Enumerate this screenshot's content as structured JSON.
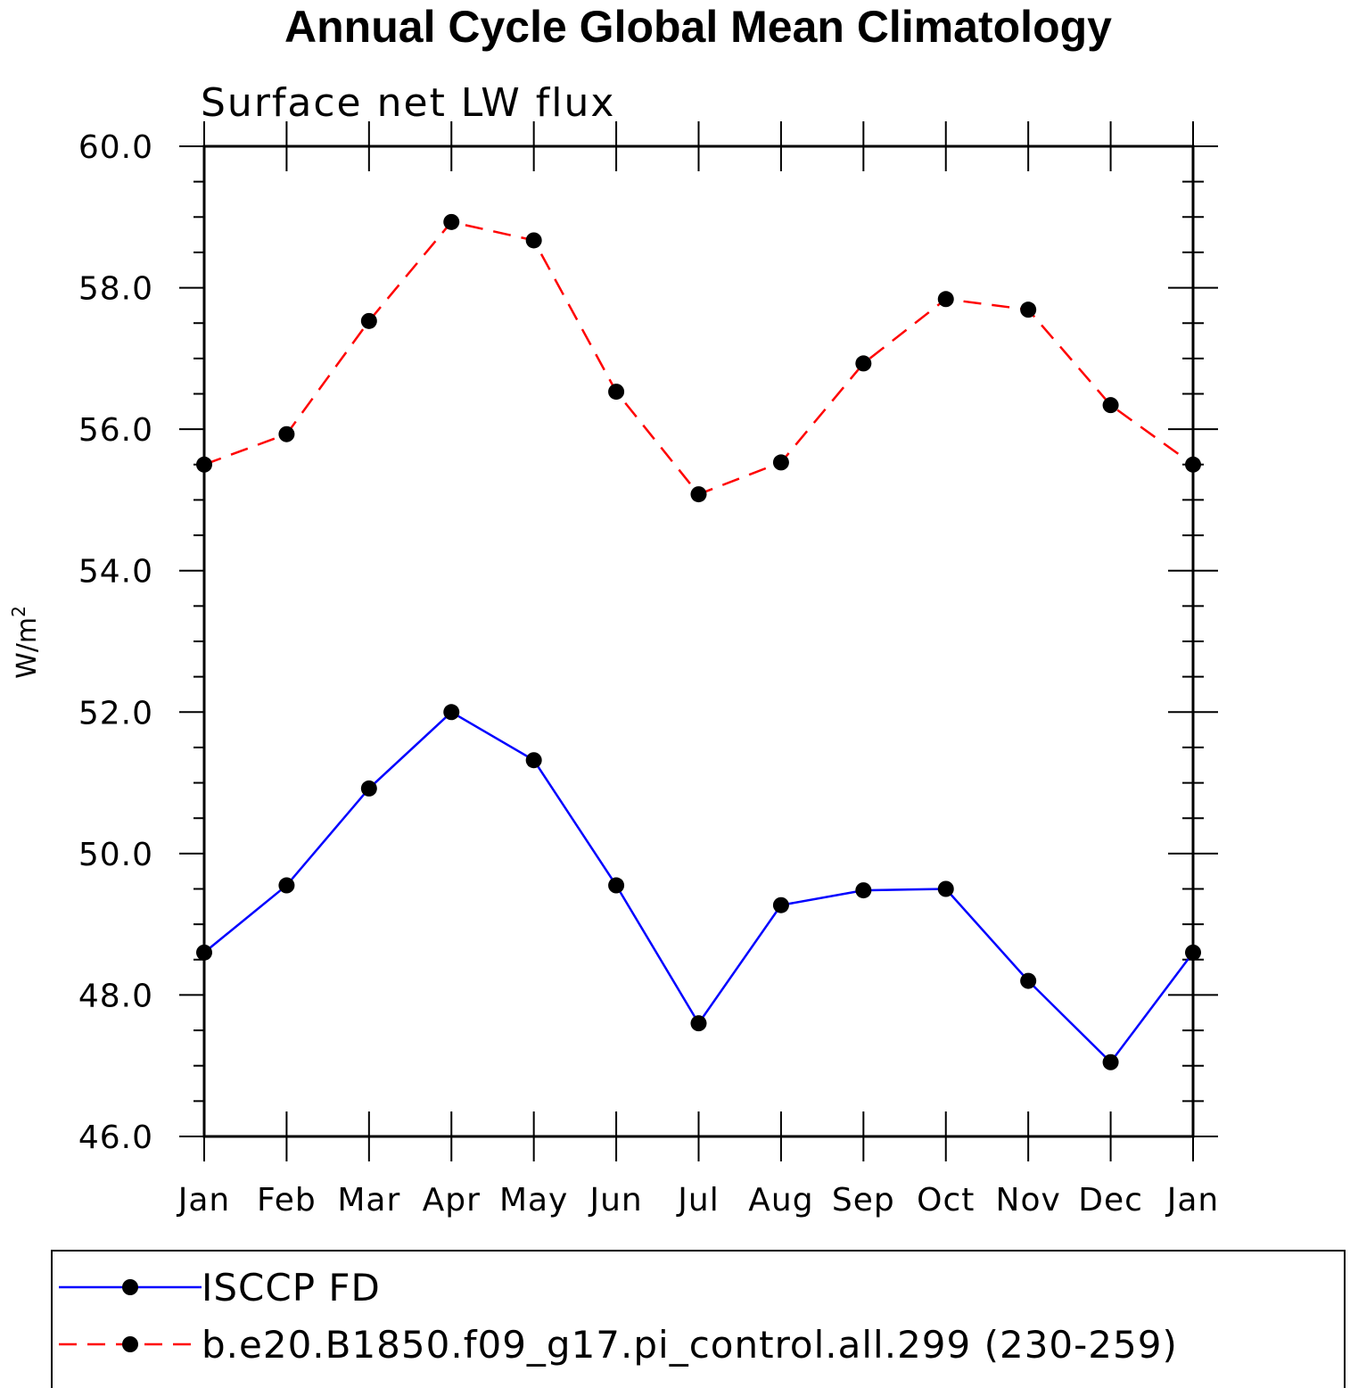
{
  "chart_data": {
    "type": "line",
    "title": "Annual Cycle Global Mean Climatology",
    "subtitle": "Surface net LW flux",
    "xlabel": "",
    "ylabel": "W/m",
    "ylabel_superscript": "2",
    "categories": [
      "Jan",
      "Feb",
      "Mar",
      "Apr",
      "May",
      "Jun",
      "Jul",
      "Aug",
      "Sep",
      "Oct",
      "Nov",
      "Dec",
      "Jan"
    ],
    "ylim": [
      46.0,
      60.0
    ],
    "yticks": [
      "46.0",
      "48.0",
      "50.0",
      "52.0",
      "54.0",
      "56.0",
      "58.0",
      "60.0"
    ],
    "series": [
      {
        "name": "ISCCP FD",
        "color": "#0000ff",
        "dash": "solid",
        "values": [
          48.6,
          49.55,
          50.92,
          52.0,
          51.32,
          49.55,
          47.6,
          49.27,
          49.48,
          49.5,
          48.2,
          47.05,
          48.6
        ]
      },
      {
        "name": "b.e20.B1850.f09_g17.pi_control.all.299 (230-259)",
        "color": "#ff0000",
        "dash": "dashed",
        "values": [
          55.5,
          55.93,
          57.53,
          58.93,
          58.67,
          56.53,
          55.08,
          55.53,
          56.93,
          57.84,
          57.69,
          56.34,
          55.5
        ]
      }
    ],
    "legend_position": "bottom"
  }
}
